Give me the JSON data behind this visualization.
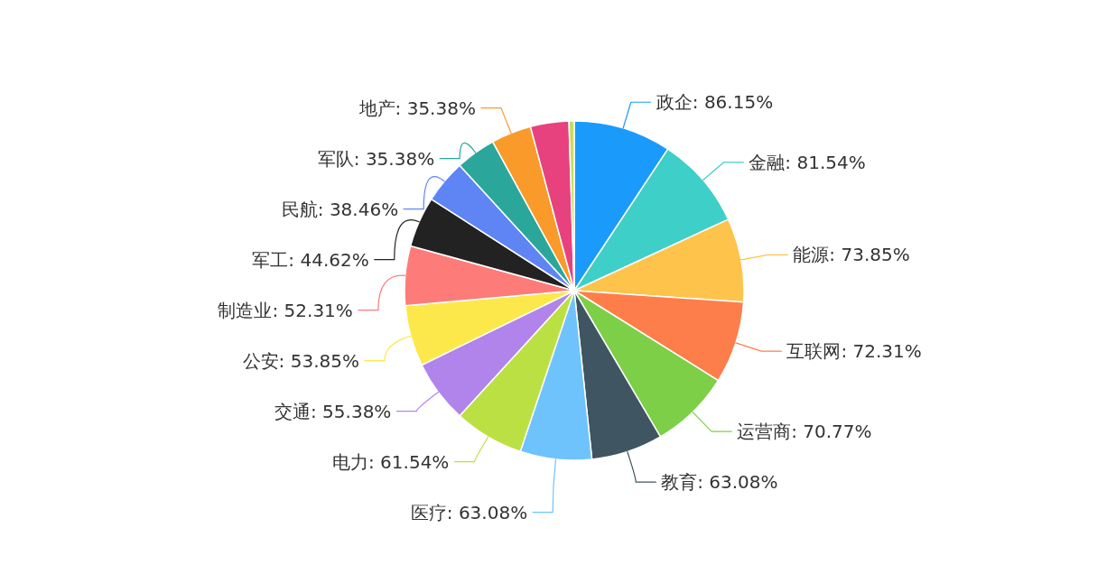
{
  "chart_data": {
    "type": "pie",
    "categories": [
      "政企",
      "金融",
      "能源",
      "互联网",
      "运营商",
      "教育",
      "医疗",
      "电力",
      "交通",
      "公安",
      "制造业",
      "军工",
      "民航",
      "军队",
      "地产",
      null,
      null
    ],
    "values": [
      86.15,
      81.54,
      73.85,
      72.31,
      70.77,
      63.08,
      63.08,
      61.54,
      55.38,
      53.85,
      52.31,
      44.62,
      38.46,
      35.38,
      35.38,
      33.85,
      4.62
    ],
    "value_labels": [
      "86.15%",
      "81.54%",
      "73.85%",
      "72.31%",
      "70.77%",
      "63.08%",
      "63.08%",
      "61.54%",
      "55.38%",
      "53.85%",
      "52.31%",
      "44.62%",
      "38.46%",
      "35.38%",
      "35.38%",
      null,
      null
    ],
    "colors": [
      "#1a9bfc",
      "#3fcfc9",
      "#fec34a",
      "#fe7e4b",
      "#7ccf46",
      "#3f5561",
      "#6ec3fd",
      "#bbe043",
      "#b184eb",
      "#fde84b",
      "#fd7c79",
      "#222222",
      "#5f85f5",
      "#2aa79a",
      "#fa9a2a",
      "#e7427d",
      "#c4e05e"
    ],
    "legend": false
  }
}
